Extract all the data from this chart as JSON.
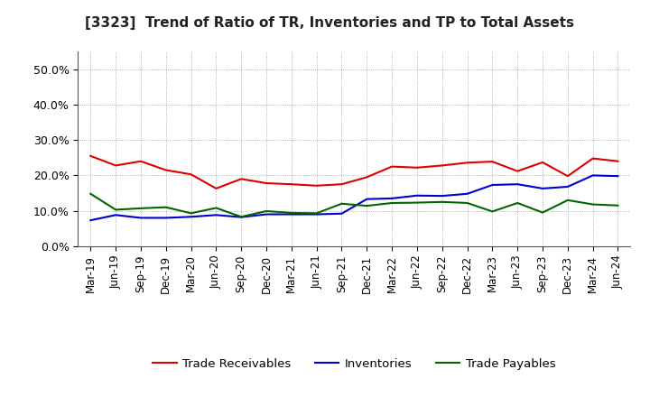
{
  "title": "[3323]  Trend of Ratio of TR, Inventories and TP to Total Assets",
  "labels": [
    "Mar-19",
    "Jun-19",
    "Sep-19",
    "Dec-19",
    "Mar-20",
    "Jun-20",
    "Sep-20",
    "Dec-20",
    "Mar-21",
    "Jun-21",
    "Sep-21",
    "Dec-21",
    "Mar-22",
    "Jun-22",
    "Sep-22",
    "Dec-22",
    "Mar-23",
    "Jun-23",
    "Sep-23",
    "Dec-23",
    "Mar-24",
    "Jun-24"
  ],
  "trade_receivables": [
    0.255,
    0.228,
    0.24,
    0.215,
    0.203,
    0.163,
    0.19,
    0.178,
    0.175,
    0.171,
    0.175,
    0.195,
    0.225,
    0.222,
    0.228,
    0.236,
    0.239,
    0.212,
    0.237,
    0.198,
    0.248,
    0.24
  ],
  "inventories": [
    0.073,
    0.088,
    0.08,
    0.08,
    0.083,
    0.088,
    0.082,
    0.09,
    0.09,
    0.09,
    0.092,
    0.133,
    0.135,
    0.143,
    0.142,
    0.148,
    0.173,
    0.175,
    0.163,
    0.168,
    0.2,
    0.198
  ],
  "trade_payables": [
    0.148,
    0.103,
    0.107,
    0.11,
    0.093,
    0.108,
    0.083,
    0.099,
    0.094,
    0.093,
    0.12,
    0.114,
    0.122,
    0.123,
    0.125,
    0.122,
    0.098,
    0.122,
    0.095,
    0.13,
    0.118,
    0.115
  ],
  "tr_color": "#dd0000",
  "inv_color": "#0000cc",
  "tp_color": "#006600",
  "ylim_min": 0.0,
  "ylim_max": 0.55,
  "yticks": [
    0.0,
    0.1,
    0.2,
    0.3,
    0.4,
    0.5
  ],
  "background_color": "#ffffff",
  "grid_color": "#999999",
  "legend_labels": [
    "Trade Receivables",
    "Inventories",
    "Trade Payables"
  ],
  "title_fontsize": 11,
  "tick_fontsize": 8.5,
  "ytick_fontsize": 9
}
